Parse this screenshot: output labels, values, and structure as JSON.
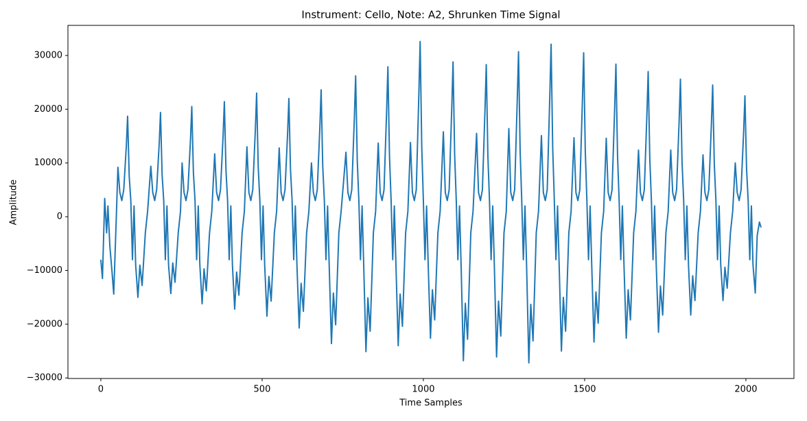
{
  "chart_data": {
    "type": "line",
    "title": "Instrument: Cello, Note: A2, Shrunken Time Signal",
    "xlabel": "Time Samples",
    "ylabel": "Amplitude",
    "color": "#1f77b4",
    "xlim": [
      -102,
      2149
    ],
    "ylim": [
      -30100,
      35600
    ],
    "xticks": [
      0,
      500,
      1000,
      1500,
      2000
    ],
    "yticks": [
      {
        "value": -30000,
        "label": "−30000"
      },
      {
        "value": -20000,
        "label": "−20000"
      },
      {
        "value": -10000,
        "label": "−10000"
      },
      0,
      10000,
      20000,
      30000
    ],
    "x": [
      0,
      5,
      12,
      18,
      22,
      28,
      35,
      40,
      48,
      53,
      59,
      65,
      71,
      79,
      83,
      88,
      93,
      98,
      103,
      108,
      115,
      121,
      128,
      138,
      145,
      155,
      161,
      167,
      173,
      181,
      185,
      190,
      195,
      200,
      205,
      210,
      217,
      223,
      230,
      240,
      247,
      252,
      258,
      264,
      270,
      278,
      282,
      287,
      292,
      297,
      302,
      307,
      314,
      320,
      327,
      337,
      344,
      353,
      359,
      365,
      371,
      379,
      383,
      388,
      393,
      398,
      403,
      408,
      415,
      421,
      428,
      438,
      445,
      453,
      459,
      465,
      471,
      479,
      483,
      488,
      493,
      498,
      503,
      508,
      515,
      521,
      528,
      538,
      545,
      553,
      559,
      565,
      571,
      579,
      583,
      588,
      593,
      598,
      603,
      608,
      615,
      621,
      628,
      638,
      645,
      653,
      659,
      665,
      671,
      679,
      683,
      688,
      693,
      698,
      703,
      708,
      715,
      721,
      728,
      738,
      745,
      760,
      766,
      772,
      778,
      786,
      790,
      795,
      800,
      805,
      810,
      815,
      822,
      828,
      835,
      845,
      852,
      860,
      866,
      872,
      878,
      886,
      890,
      895,
      900,
      905,
      910,
      915,
      922,
      928,
      935,
      945,
      952,
      960,
      966,
      972,
      978,
      986,
      990,
      995,
      1000,
      1005,
      1010,
      1015,
      1022,
      1028,
      1035,
      1045,
      1052,
      1062,
      1068,
      1074,
      1080,
      1088,
      1092,
      1097,
      1102,
      1107,
      1112,
      1117,
      1124,
      1130,
      1137,
      1147,
      1154,
      1165,
      1171,
      1177,
      1183,
      1191,
      1195,
      1200,
      1205,
      1210,
      1215,
      1220,
      1227,
      1233,
      1240,
      1250,
      1257,
      1265,
      1271,
      1277,
      1283,
      1291,
      1295,
      1300,
      1305,
      1310,
      1315,
      1320,
      1327,
      1333,
      1340,
      1350,
      1357,
      1366,
      1372,
      1378,
      1384,
      1392,
      1396,
      1401,
      1406,
      1411,
      1416,
      1421,
      1428,
      1434,
      1441,
      1451,
      1458,
      1467,
      1473,
      1479,
      1485,
      1493,
      1497,
      1502,
      1507,
      1512,
      1517,
      1522,
      1529,
      1535,
      1542,
      1552,
      1559,
      1567,
      1573,
      1579,
      1585,
      1593,
      1597,
      1602,
      1607,
      1612,
      1617,
      1622,
      1629,
      1635,
      1642,
      1652,
      1659,
      1667,
      1673,
      1679,
      1685,
      1693,
      1697,
      1702,
      1707,
      1712,
      1717,
      1722,
      1729,
      1735,
      1742,
      1752,
      1759,
      1767,
      1773,
      1779,
      1785,
      1793,
      1797,
      1802,
      1807,
      1812,
      1817,
      1822,
      1829,
      1835,
      1842,
      1852,
      1859,
      1867,
      1873,
      1879,
      1885,
      1893,
      1897,
      1902,
      1907,
      1912,
      1917,
      1922,
      1929,
      1935,
      1942,
      1952,
      1959,
      1967,
      1973,
      1979,
      1985,
      1993,
      1997,
      2002,
      2007,
      2012,
      2017,
      2022,
      2029,
      2035,
      2042,
      2047
    ],
    "values": [
      -8000,
      -11500,
      3400,
      -3000,
      2000,
      -5500,
      -10500,
      -14400,
      0,
      9200,
      4500,
      3000,
      5000,
      13100,
      18700,
      7500,
      3000,
      -8000,
      2000,
      -9000,
      -15000,
      -9000,
      -12800,
      -3000,
      1000,
      9400,
      4500,
      3000,
      5000,
      13600,
      19400,
      7800,
      3000,
      -8000,
      2000,
      -9000,
      -14300,
      -8600,
      -12200,
      -3000,
      1000,
      10000,
      4500,
      3000,
      5000,
      14400,
      20500,
      8200,
      3000,
      -8000,
      2000,
      -9000,
      -16200,
      -9700,
      -13800,
      -3000,
      1000,
      11700,
      4500,
      3000,
      5000,
      15000,
      21400,
      8600,
      3000,
      -8000,
      2000,
      -9000,
      -17200,
      -10300,
      -14600,
      -3000,
      1000,
      13000,
      4500,
      3000,
      5000,
      16100,
      23000,
      9200,
      3000,
      -8000,
      2000,
      -9000,
      -18500,
      -11100,
      -15700,
      -3000,
      1000,
      12800,
      4500,
      3000,
      5000,
      15400,
      22000,
      8800,
      3000,
      -8000,
      2000,
      -9000,
      -20700,
      -12400,
      -17600,
      -3000,
      1000,
      10000,
      4500,
      3000,
      5000,
      16500,
      23600,
      9400,
      3000,
      -8000,
      2000,
      -9000,
      -23600,
      -14200,
      -20100,
      -3000,
      1000,
      12000,
      4500,
      3000,
      5000,
      18300,
      26200,
      10500,
      3000,
      -8000,
      2000,
      -9000,
      -25100,
      -15100,
      -21300,
      -3000,
      1000,
      13700,
      4500,
      3000,
      5000,
      19500,
      27900,
      11200,
      3000,
      -8000,
      2000,
      -9000,
      -24000,
      -14400,
      -20400,
      -3000,
      1000,
      13800,
      4500,
      3000,
      5000,
      22800,
      32600,
      13000,
      3000,
      -8000,
      2000,
      -9000,
      -22600,
      -13600,
      -19200,
      -3000,
      1000,
      15800,
      4500,
      3000,
      5000,
      20200,
      28800,
      11500,
      3000,
      -8000,
      2000,
      -9000,
      -26800,
      -16100,
      -22800,
      -3000,
      1000,
      15500,
      4500,
      3000,
      5000,
      19800,
      28300,
      11300,
      3000,
      -8000,
      2000,
      -9000,
      -26100,
      -15700,
      -22200,
      -3000,
      1000,
      16400,
      4500,
      3000,
      5000,
      21500,
      30700,
      12300,
      3000,
      -8000,
      2000,
      -9000,
      -27200,
      -16300,
      -23100,
      -3000,
      1000,
      15100,
      4500,
      3000,
      5000,
      22500,
      32100,
      12800,
      3000,
      -8000,
      2000,
      -9000,
      -25000,
      -15000,
      -21300,
      -3000,
      1000,
      14700,
      4500,
      3000,
      5000,
      21400,
      30500,
      12200,
      3000,
      -8000,
      2000,
      -9000,
      -23300,
      -14000,
      -19800,
      -3000,
      1000,
      14600,
      4500,
      3000,
      5000,
      19900,
      28400,
      11400,
      3000,
      -8000,
      2000,
      -9000,
      -22600,
      -13600,
      -19200,
      -3000,
      1000,
      12400,
      4500,
      3000,
      5000,
      18900,
      27000,
      10800,
      3000,
      -8000,
      2000,
      -9000,
      -21500,
      -12900,
      -18300,
      -3000,
      1000,
      12400,
      4500,
      3000,
      5000,
      17900,
      25600,
      10200,
      3000,
      -8000,
      2000,
      -9000,
      -18300,
      -11000,
      -15600,
      -3000,
      1000,
      11500,
      4500,
      3000,
      5000,
      17200,
      24500,
      9800,
      3000,
      -8000,
      2000,
      -9000,
      -15600,
      -9400,
      -13300,
      -3000,
      1000,
      10000,
      4500,
      3000,
      5000,
      15800,
      22500,
      9000,
      3000,
      -8000,
      2000,
      -9000,
      -14200,
      -3500,
      -1000,
      -2000
    ]
  }
}
